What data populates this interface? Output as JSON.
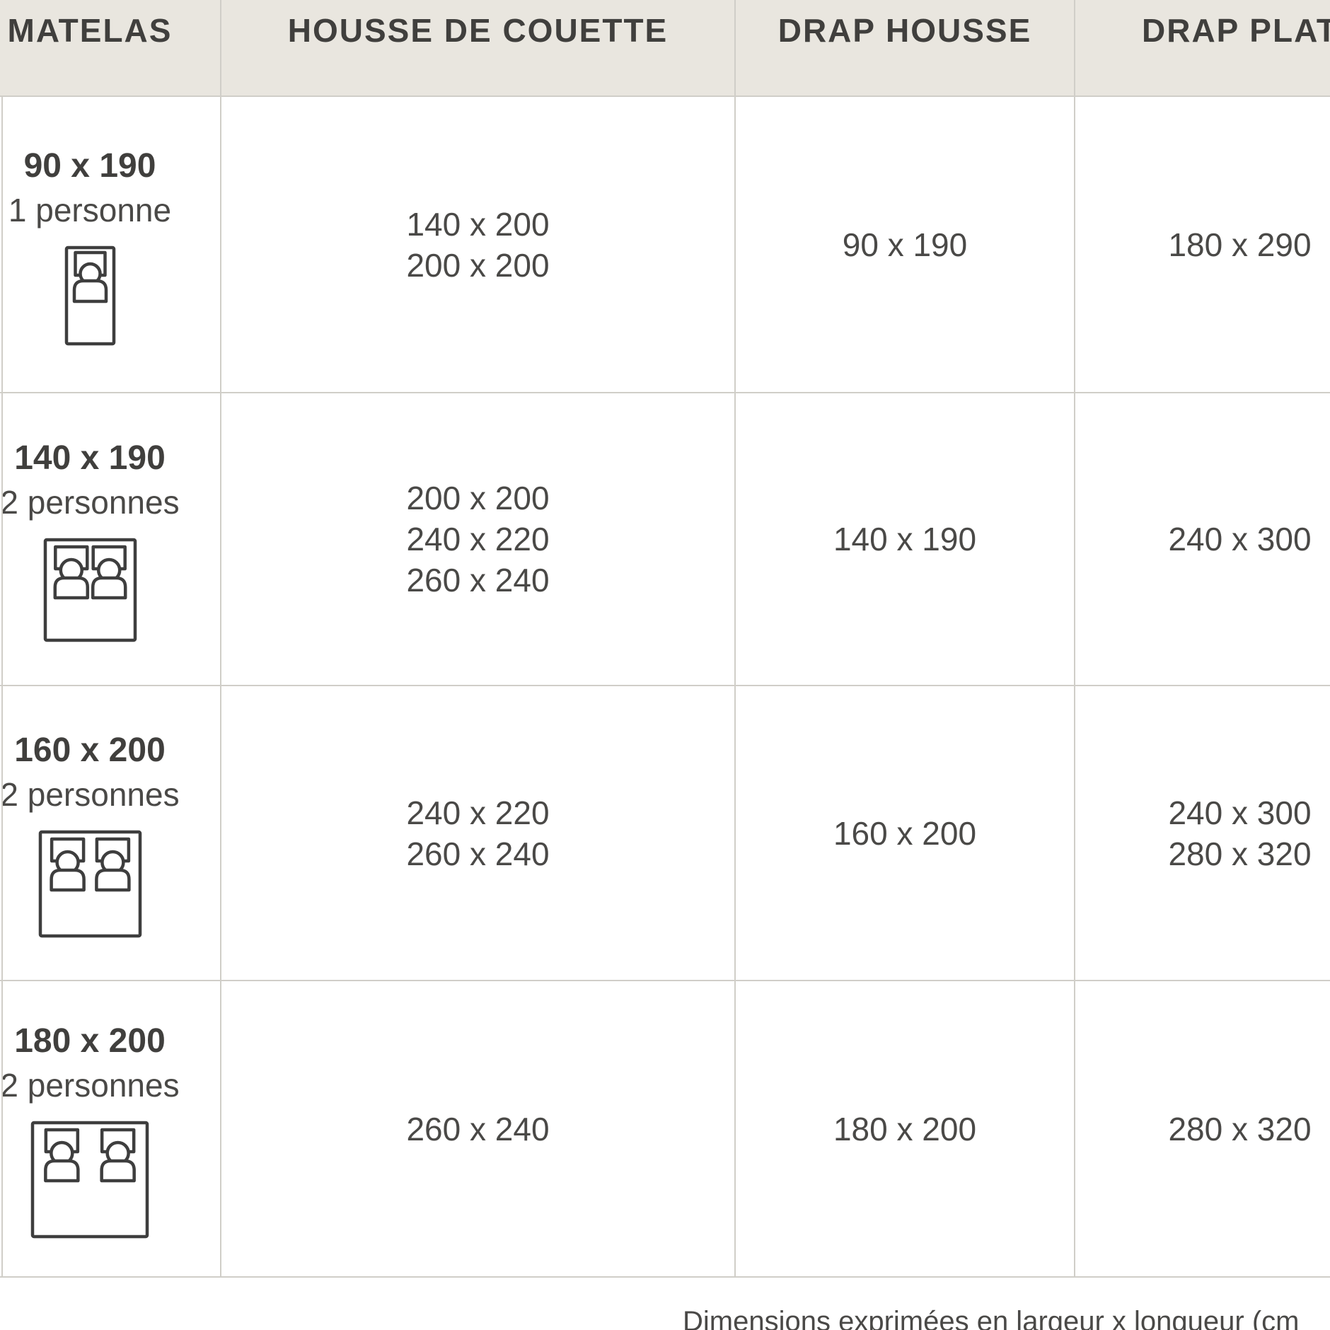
{
  "table": {
    "columns": [
      {
        "label": "MATELAS"
      },
      {
        "label": "HOUSSE DE COUETTE"
      },
      {
        "label": "DRAP HOUSSE"
      },
      {
        "label": "DRAP PLAT"
      }
    ],
    "rows": [
      {
        "mattress_size": "90 x 190",
        "capacity": "1 personne",
        "bed_icon": "bed-single-icon",
        "housse_de_couette": [
          "140 x 200",
          "200 x 200"
        ],
        "drap_housse": [
          "90 x 190"
        ],
        "drap_plat": [
          "180 x 290"
        ]
      },
      {
        "mattress_size": "140 x 190",
        "capacity": "2 personnes",
        "bed_icon": "bed-double-icon",
        "housse_de_couette": [
          "200 x 200",
          "240 x 220",
          "260 x 240"
        ],
        "drap_housse": [
          "140 x 190"
        ],
        "drap_plat": [
          "240 x 300"
        ]
      },
      {
        "mattress_size": "160 x 200",
        "capacity": "2 personnes",
        "bed_icon": "bed-double-icon",
        "housse_de_couette": [
          "240 x 220",
          "260 x 240"
        ],
        "drap_housse": [
          "160 x 200"
        ],
        "drap_plat": [
          "240 x 300",
          "280 x 320"
        ]
      },
      {
        "mattress_size": "180 x 200",
        "capacity": "2 personnes",
        "bed_icon": "bed-double-icon",
        "housse_de_couette": [
          "260 x 240"
        ],
        "drap_housse": [
          "180 x 200"
        ],
        "drap_plat": [
          "280 x 320"
        ]
      }
    ]
  },
  "footer": {
    "note": "Dimensions exprimées en largeur x longueur (cm"
  },
  "colors": {
    "header_bg": "#e9e6df",
    "border": "#d0cec8",
    "text": "#4a4947",
    "text_bold": "#403f3d",
    "icon_stroke": "#3e3e3e",
    "background": "#ffffff"
  }
}
